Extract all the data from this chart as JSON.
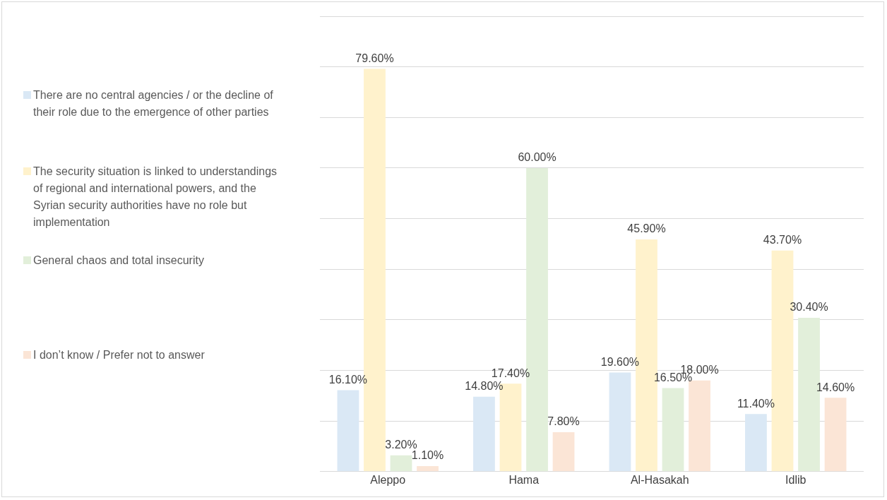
{
  "chart_data": {
    "type": "bar",
    "categories": [
      "Aleppo",
      "Hama",
      "Al-Hasakah",
      "Idlib"
    ],
    "series": [
      {
        "name": "There are no central agencies / or the decline of their role due to the emergence of other parties",
        "color": "#dae8f5",
        "values": [
          16.1,
          14.8,
          19.6,
          11.4
        ],
        "value_labels": [
          "16.10%",
          "14.80%",
          "19.60%",
          "11.40%"
        ]
      },
      {
        "name": "The security situation is linked to understandings of regional and international powers, and the Syrian security authorities have no role but implementation",
        "color": "#fff2cc",
        "values": [
          79.6,
          17.4,
          45.9,
          43.7
        ],
        "value_labels": [
          "79.60%",
          "17.40%",
          "45.90%",
          "43.70%"
        ]
      },
      {
        "name": "General chaos and total insecurity",
        "color": "#e2efda",
        "values": [
          3.2,
          60.0,
          16.5,
          30.4
        ],
        "value_labels": [
          "3.20%",
          "60.00%",
          "16.50%",
          "30.40%"
        ]
      },
      {
        "name": "I don’t know / Prefer not to answer",
        "color": "#fbe5d6",
        "values": [
          1.1,
          7.8,
          18.0,
          14.6
        ],
        "value_labels": [
          "1.10%",
          "7.80%",
          "18.00%",
          "14.60%"
        ]
      }
    ],
    "tick_labels": "x",
    "grid": "y",
    "legend": "left"
  }
}
